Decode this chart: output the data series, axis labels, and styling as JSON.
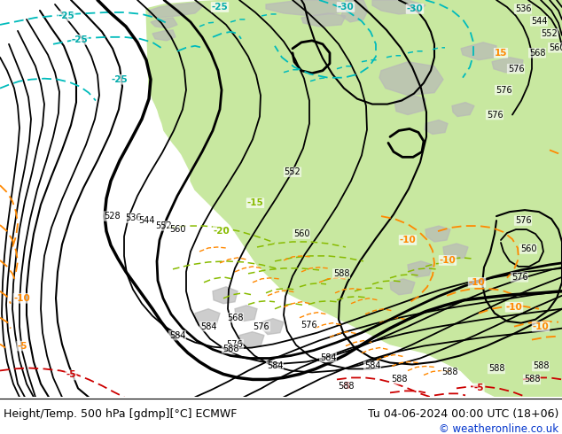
{
  "title_left": "Height/Temp. 500 hPa [gdmp][°C] ECMWF",
  "title_right": "Tu 04-06-2024 00:00 UTC (18+06)",
  "copyright": "© weatheronline.co.uk",
  "fig_width": 6.34,
  "fig_height": 4.9,
  "dpi": 100,
  "land_color": "#c8e8a0",
  "ocean_color": "#d2d2d2",
  "gray_land_color": "#b8b8b8",
  "title_fontsize": 9.0,
  "copyright_color": "#0033cc",
  "copyright_fontsize": 8.5,
  "footer_bg": "#ffffff",
  "footer_ratio": 0.085
}
